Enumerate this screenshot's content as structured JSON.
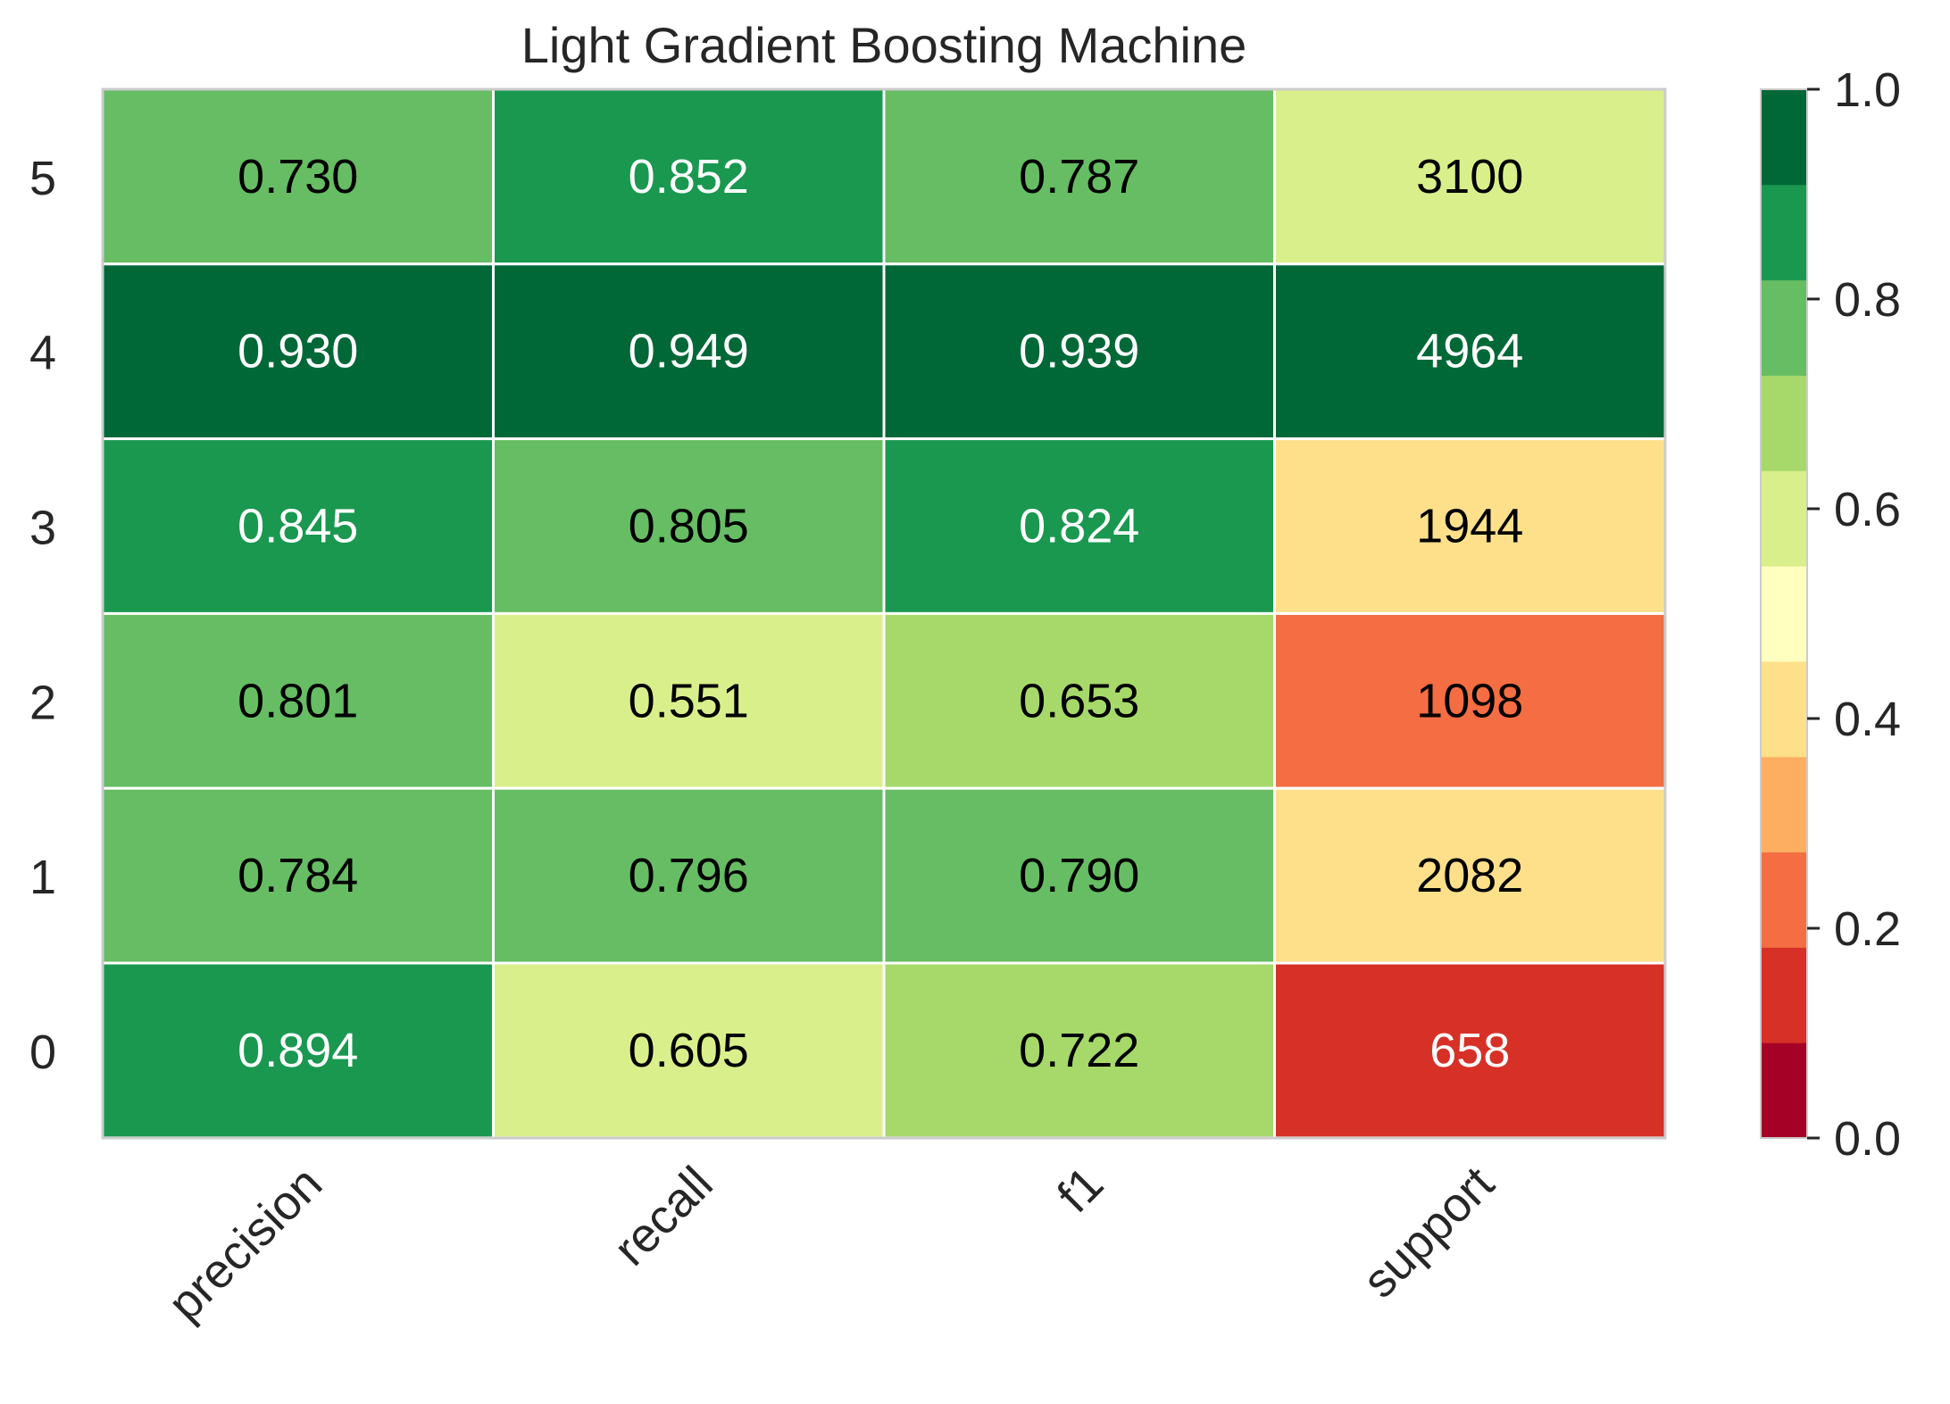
{
  "chart_data": {
    "type": "heatmap",
    "title": "Light Gradient Boosting Machine",
    "columns": [
      "precision",
      "recall",
      "f1",
      "support"
    ],
    "rows": [
      "5",
      "4",
      "3",
      "2",
      "1",
      "0"
    ],
    "cells": [
      [
        "0.730",
        "0.852",
        "0.787",
        "3100"
      ],
      [
        "0.930",
        "0.949",
        "0.939",
        "4964"
      ],
      [
        "0.845",
        "0.805",
        "0.824",
        "1944"
      ],
      [
        "0.801",
        "0.551",
        "0.653",
        "1098"
      ],
      [
        "0.784",
        "0.796",
        "0.790",
        "2082"
      ],
      [
        "0.894",
        "0.605",
        "0.722",
        "658"
      ]
    ],
    "colorbar": {
      "range": [
        0.0,
        1.0
      ],
      "ticks": [
        "0.0",
        "0.2",
        "0.4",
        "0.6",
        "0.8",
        "1.0"
      ],
      "colormap": [
        "#a50026",
        "#d73027",
        "#f46d43",
        "#fdae61",
        "#fee08b",
        "#ffffbf",
        "#d9ef8b",
        "#a6d96a",
        "#66bd63",
        "#1a9850",
        "#006837"
      ]
    }
  }
}
